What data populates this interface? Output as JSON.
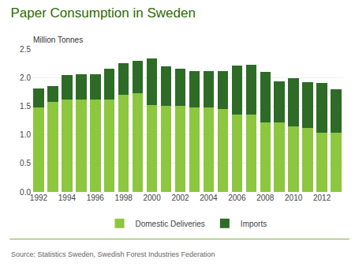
{
  "chart_data": {
    "type": "bar",
    "title": "Paper Consumption in Sweden",
    "ylabel": "Million Tonnes",
    "categories": [
      "1992",
      null,
      "1994",
      null,
      "1996",
      null,
      "1998",
      null,
      "2000",
      null,
      "2002",
      null,
      "2004",
      null,
      "2006",
      null,
      "2008",
      null,
      "2010",
      null,
      "2012",
      null
    ],
    "series": [
      {
        "name": "Domestic Deliveries",
        "color": "#8dc63f",
        "values": [
          1.48,
          1.57,
          1.62,
          1.62,
          1.62,
          1.62,
          1.7,
          1.72,
          1.52,
          1.5,
          1.5,
          1.48,
          1.48,
          1.45,
          1.35,
          1.35,
          1.22,
          1.22,
          1.15,
          1.12,
          1.03,
          1.03
        ]
      },
      {
        "name": "Imports",
        "color": "#2d6b27",
        "values": [
          0.33,
          0.28,
          0.43,
          0.44,
          0.44,
          0.53,
          0.55,
          0.57,
          0.82,
          0.7,
          0.65,
          0.63,
          0.64,
          0.66,
          0.86,
          0.88,
          0.88,
          0.72,
          0.84,
          0.8,
          0.88,
          0.77
        ]
      }
    ],
    "stacked": true,
    "ylim": [
      0,
      2.5
    ],
    "yticks": [
      {
        "value": 0.0,
        "label": "0.0"
      },
      0.5,
      {
        "value": 1.0,
        "label": "1.0"
      },
      1.5,
      {
        "value": 2.0,
        "label": "2.0"
      },
      2.5
    ],
    "grid": true,
    "legend": "bottom",
    "annotations": [
      "Source: Statistics Sweden, Swedish Forest Industries Federation"
    ]
  }
}
